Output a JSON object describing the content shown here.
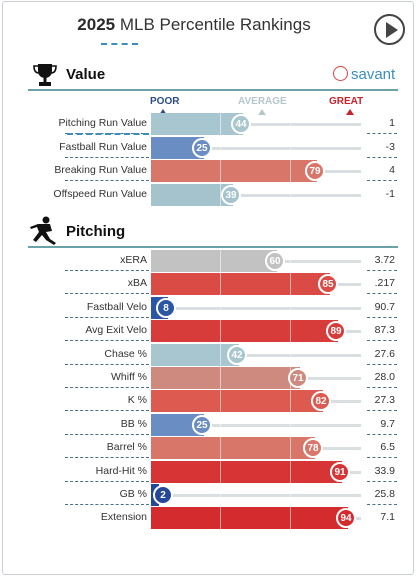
{
  "header": {
    "title_year": "2025",
    "title_rest": " MLB Percentile Rankings",
    "play_icon": "play-icon"
  },
  "brand": {
    "label": "savant",
    "icon": "baseball-icon"
  },
  "scale": {
    "poor": "POOR",
    "average": "AVERAGE",
    "great": "GREAT",
    "colors": {
      "poor": "#2c4d8a",
      "average": "#b6c7cc",
      "great": "#c8232c"
    }
  },
  "sections": {
    "value": {
      "title": "Value",
      "icon": "trophy-icon",
      "rows": [
        {
          "label": "Pitching Run Value",
          "pct": 44,
          "value": "1",
          "color": "#a8c6cf"
        },
        {
          "label": "Fastball Run Value",
          "pct": 25,
          "value": "-3",
          "color": "#6a8dc3"
        },
        {
          "label": "Breaking Run Value",
          "pct": 79,
          "value": "4",
          "color": "#d8766a"
        },
        {
          "label": "Offspeed Run Value",
          "pct": 39,
          "value": "-1",
          "color": "#a4c3cc"
        }
      ]
    },
    "pitching": {
      "title": "Pitching",
      "icon": "pitcher-icon",
      "rows": [
        {
          "label": "xERA",
          "pct": 60,
          "value": "3.72",
          "color": "#c2c2c2"
        },
        {
          "label": "xBA",
          "pct": 85,
          "value": ".217",
          "color": "#db4b46"
        },
        {
          "label": "Fastball Velo",
          "pct": 8,
          "value": "90.7",
          "color": "#2b55a5"
        },
        {
          "label": "Avg Exit Velo",
          "pct": 89,
          "value": "87.3",
          "color": "#d83c3a"
        },
        {
          "label": "Chase %",
          "pct": 42,
          "value": "27.6",
          "color": "#a8c6cf"
        },
        {
          "label": "Whiff %",
          "pct": 71,
          "value": "28.0",
          "color": "#cf8a7f"
        },
        {
          "label": "K %",
          "pct": 82,
          "value": "27.3",
          "color": "#dc5a4f"
        },
        {
          "label": "BB %",
          "pct": 25,
          "value": "9.7",
          "color": "#6a8dc3"
        },
        {
          "label": "Barrel %",
          "pct": 78,
          "value": "6.5",
          "color": "#d8766a"
        },
        {
          "label": "Hard-Hit %",
          "pct": 91,
          "value": "33.9",
          "color": "#d73535"
        },
        {
          "label": "GB %",
          "pct": 2,
          "value": "25.8",
          "color": "#25479a"
        },
        {
          "label": "Extension",
          "pct": 94,
          "value": "7.1",
          "color": "#d42b2f"
        }
      ]
    }
  }
}
